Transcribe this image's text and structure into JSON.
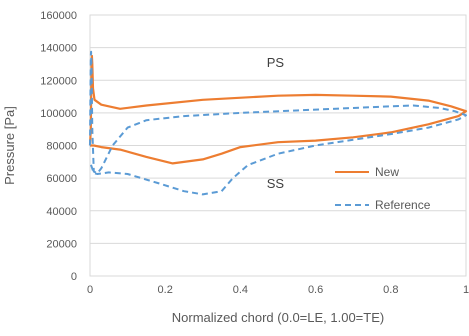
{
  "chart_data": {
    "type": "line",
    "title": "",
    "xlabel": "Normalized chord (0.0=LE, 1.00=TE)",
    "ylabel": "Pressure [Pa]",
    "xlim": [
      0,
      1
    ],
    "ylim": [
      0,
      160000
    ],
    "x_ticks": [
      "0",
      "0.2",
      "0.4",
      "0.6",
      "0.8",
      "1"
    ],
    "y_ticks": [
      "0",
      "20000",
      "40000",
      "60000",
      "80000",
      "100000",
      "120000",
      "140000",
      "160000"
    ],
    "grid": "horizontal",
    "legend_position": "right",
    "annotations": [
      {
        "text": "PS",
        "x": 0.47,
        "y": 128000
      },
      {
        "text": "SS",
        "x": 0.47,
        "y": 54000
      }
    ],
    "series": [
      {
        "name": "New",
        "style": "solid",
        "color": "#ED7D31",
        "points": [
          [
            0.0,
            80000
          ],
          [
            0.002,
            90000
          ],
          [
            0.004,
            130000
          ],
          [
            0.005,
            135000
          ],
          [
            0.006,
            130000
          ],
          [
            0.008,
            115000
          ],
          [
            0.012,
            108000
          ],
          [
            0.03,
            105000
          ],
          [
            0.08,
            102500
          ],
          [
            0.15,
            104500
          ],
          [
            0.3,
            108000
          ],
          [
            0.5,
            110500
          ],
          [
            0.6,
            111000
          ],
          [
            0.7,
            110500
          ],
          [
            0.8,
            110000
          ],
          [
            0.9,
            107500
          ],
          [
            0.96,
            104000
          ],
          [
            1.0,
            101000
          ],
          [
            0.98,
            98000
          ],
          [
            0.9,
            93000
          ],
          [
            0.8,
            88000
          ],
          [
            0.7,
            85000
          ],
          [
            0.6,
            83000
          ],
          [
            0.5,
            82000
          ],
          [
            0.4,
            79000
          ],
          [
            0.35,
            75000
          ],
          [
            0.3,
            71500
          ],
          [
            0.22,
            69000
          ],
          [
            0.15,
            73000
          ],
          [
            0.08,
            77500
          ],
          [
            0.03,
            79000
          ],
          [
            0.01,
            80000
          ],
          [
            0.0,
            80000
          ]
        ]
      },
      {
        "name": "Reference",
        "style": "dashed",
        "color": "#5B9BD5",
        "points": [
          [
            0.0,
            80000
          ],
          [
            0.001,
            110000
          ],
          [
            0.002,
            135000
          ],
          [
            0.003,
            137500
          ],
          [
            0.004,
            130000
          ],
          [
            0.006,
            90000
          ],
          [
            0.01,
            64000
          ],
          [
            0.02,
            63000
          ],
          [
            0.03,
            66000
          ],
          [
            0.06,
            80000
          ],
          [
            0.1,
            91000
          ],
          [
            0.15,
            95500
          ],
          [
            0.25,
            98000
          ],
          [
            0.4,
            100000
          ],
          [
            0.6,
            102000
          ],
          [
            0.7,
            103000
          ],
          [
            0.8,
            104000
          ],
          [
            0.86,
            104500
          ],
          [
            0.93,
            103000
          ],
          [
            0.97,
            101000
          ],
          [
            1.0,
            98500
          ],
          [
            0.98,
            96000
          ],
          [
            0.9,
            91000
          ],
          [
            0.8,
            87000
          ],
          [
            0.7,
            83500
          ],
          [
            0.6,
            80000
          ],
          [
            0.5,
            75000
          ],
          [
            0.42,
            68000
          ],
          [
            0.38,
            60000
          ],
          [
            0.35,
            52000
          ],
          [
            0.3,
            50000
          ],
          [
            0.25,
            52000
          ],
          [
            0.18,
            57000
          ],
          [
            0.1,
            62500
          ],
          [
            0.05,
            63500
          ],
          [
            0.02,
            62500
          ],
          [
            0.01,
            63000
          ],
          [
            0.0,
            70000
          ]
        ]
      }
    ]
  }
}
